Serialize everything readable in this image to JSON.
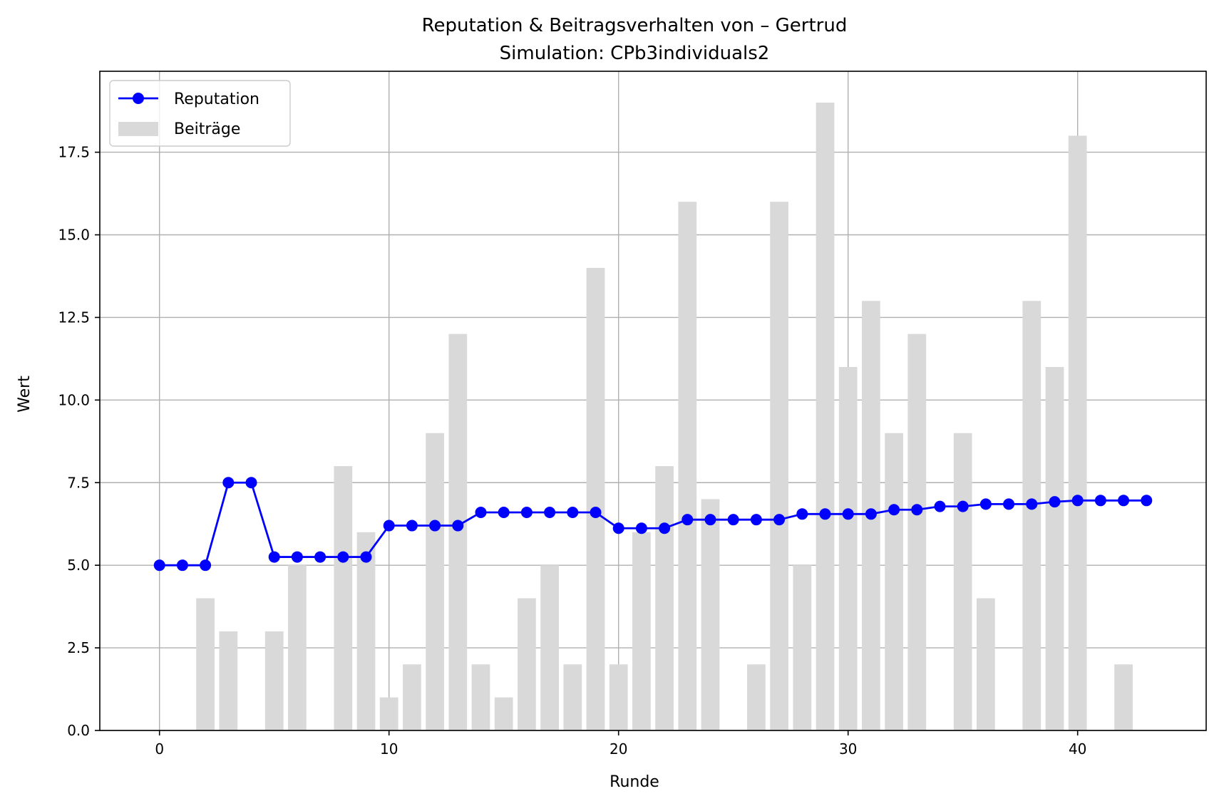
{
  "chart_data": {
    "type": "bar+line",
    "title": "Reputation & Beitragsverhalten von – Gertrud",
    "subtitle": "Simulation: CPb3individuals2",
    "xlabel": "Runde",
    "ylabel": "Wert",
    "xlim": [
      -2.6,
      45.6
    ],
    "ylim": [
      0,
      19.95
    ],
    "xticks": [
      0,
      10,
      20,
      30,
      40
    ],
    "yticks": [
      0.0,
      2.5,
      5.0,
      7.5,
      10.0,
      12.5,
      15.0,
      17.5
    ],
    "ytick_labels": [
      "0.0",
      "2.5",
      "5.0",
      "7.5",
      "10.0",
      "12.5",
      "15.0",
      "17.5"
    ],
    "grid": true,
    "legend_position": "top-left",
    "x": [
      0,
      1,
      2,
      3,
      4,
      5,
      6,
      7,
      8,
      9,
      10,
      11,
      12,
      13,
      14,
      15,
      16,
      17,
      18,
      19,
      20,
      21,
      22,
      23,
      24,
      25,
      26,
      27,
      28,
      29,
      30,
      31,
      32,
      33,
      34,
      35,
      36,
      37,
      38,
      39,
      40,
      41,
      42,
      43
    ],
    "series": [
      {
        "name": "Beiträge",
        "kind": "bar",
        "color": "#d9d9d9",
        "values": [
          0,
          0,
          4,
          3,
          0,
          3,
          5,
          0,
          8,
          6,
          1,
          2,
          9,
          12,
          2,
          1,
          4,
          5,
          2,
          14,
          2,
          6,
          8,
          16,
          7,
          0,
          2,
          16,
          5,
          19,
          11,
          13,
          9,
          12,
          0,
          9,
          4,
          0,
          13,
          11,
          18,
          0,
          2,
          0
        ]
      },
      {
        "name": "Reputation",
        "kind": "line",
        "color": "#0000ff",
        "values": [
          5.0,
          5.0,
          5.0,
          7.5,
          7.5,
          5.25,
          5.25,
          5.25,
          5.25,
          5.25,
          6.2,
          6.2,
          6.2,
          6.2,
          6.6,
          6.6,
          6.6,
          6.6,
          6.6,
          6.6,
          6.12,
          6.12,
          6.12,
          6.38,
          6.38,
          6.38,
          6.38,
          6.38,
          6.55,
          6.55,
          6.55,
          6.55,
          6.68,
          6.68,
          6.78,
          6.78,
          6.85,
          6.85,
          6.85,
          6.92,
          6.96,
          6.96,
          6.96,
          6.96
        ]
      }
    ]
  }
}
